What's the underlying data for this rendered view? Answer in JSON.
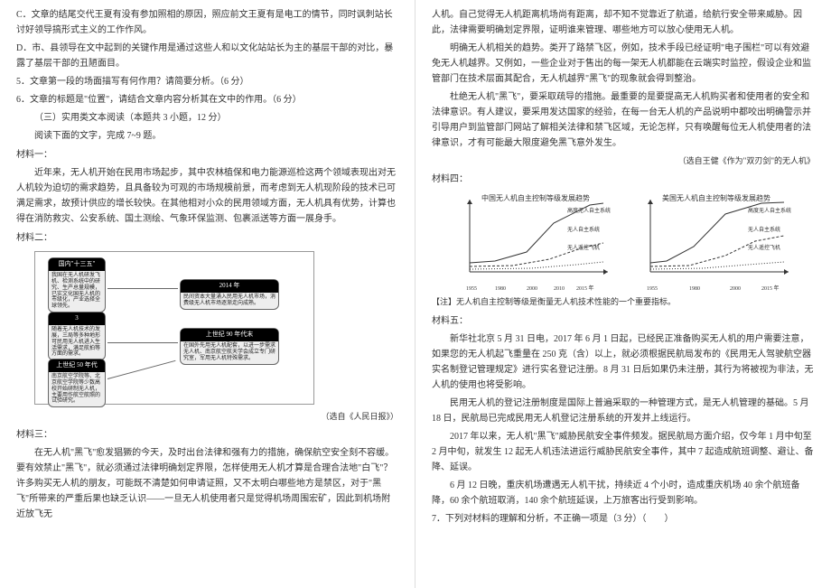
{
  "left": {
    "p_c": "C．文章的结尾交代王夏有没有参加照相的原因，照应前文王夏有是电工的情节，同时讽刺站长讨好领导搞形式主义的工作作风。",
    "p_d": "D．市、县领导在文中起到的关键作用是通过这些人和以文化站站长为主的基层干部的对比，暴露了基层干部的丑陋面目。",
    "q5": "5．文章第一段的场面描写有何作用？请简要分析。（6 分）",
    "q6": "6．文章的标题是\"位置\"，请结合文章内容分析其在文中的作用。（6 分）",
    "sect": "（三）实用类文本阅读（本题共 3 小题，12 分）",
    "inst": "阅读下面的文字，完成 7~9 题。",
    "m1h": "材料一：",
    "m1a": "近年来，无人机开始在民用市场起步，其中农林植保和电力能源巡检这两个领域表现出对无人机较为迫切的需求趋势，且具备较为可观的市场规模前景，而考虑到无人机现阶段的技术已可满足需求，故预计供应的增长较快。在其他相对小众的民用领域方面，无人机具有优势，计算也得在消防救灾、公安系统、国土测绘、气象环保监测、包裹派送等方面一展身手。",
    "m2h": "材料二：",
    "src1": "（选自《人民日报》）",
    "m3h": "材料三：",
    "m3a": "在无人机\"黑飞\"愈发猖獗的今天，及时出台法律和强有力的措施，确保航空安全刻不容缓。要有效禁止\"黑飞\"，就必须通过法律明确划定界限，怎样使用无人机才算是合理合法地\"白飞\"？许多购买无人机的朋友，可能既不清楚如何申请证照，又不太明白哪些地方是禁区，对于\"黑飞\"所带来的严重后果也缺乏认识——一旦无人机使用者只是觉得机场周围宏矿，因此到机场附近放飞无",
    "diagram": {
      "headers": [
        "国内\"十三五\"",
        "3",
        "上世纪 90 年代末",
        "2014 年",
        "上世纪 50 年代"
      ],
      "body1": "我国在无人机研发飞机、检测系统中的研究、生产总量规模，已实文化国无人机的市级化，产业选择全球领先。",
      "body2": "随着无人机技术的发展，三局等多种地形可民用无人机进入生活需求，满足航拍等方面的需求。",
      "body3": "在国外先用无人机配套，以进一步需求无人机、南京航空航天学会成立专门研究室，军用无人机特殊需求。",
      "body4": "民间资本大量涌入民用无人机市场，消费级无人机市场逐渐走向成熟。",
      "body5": "南京航空学院等、北京航空学院等少数高校开始研制无人机，主要用作航空航照的试验研究。"
    }
  },
  "right": {
    "p1": "人机。自己觉得无人机距离机场尚有距离，却不知不觉靠近了航道，给航行安全带来威胁。因此，法律需要明确划定界限，证明谁来管理、哪些地方可以放心使用无人机。",
    "p2": "明确无人机相关的趋势。类开了路禁飞区，例如，技术手段已经证明\"电子围栏\"可以有效避免无人机越界。又例如，一些企业对于售出的每一架无人机都能在云端实时监控，假设企业和监管部门在技术层面其配合，无人机越界\"黑飞\"的现象就会得到整治。",
    "p3": "杜绝无人机\"黑飞\"，要采取疏导的措施。最重要的是要提高无人机购买者和使用者的安全和法律意识。有人建议，要采用发达国家的经验，在每一台无人机的产品说明中都咬出明确警示并引导用户到监管部门网站了解相关法律和禁飞区域，无论怎样，只有唤醒每位无人机使用者的法律意识，才有可能最大限度避免黑飞意外发生。",
    "src2": "（选自王健《作为\"双刃剑\"的无人机》",
    "m4h": "材料四：",
    "note": "【注】无人机自主控制等级是衡量无人机技术性能的一个重要指标。",
    "m5h": "材料五：",
    "m5a": "新华社北京 5 月 31 日电，2017 年 6 月 1 日起，已经民正准备购买无人机的用户需要注意，如果您的无人机起飞重量在 250 克（含）以上，就必须根据民航局发布的《民用无人驾驶航空器实名制登记管理规定》进行实名登记注册。8 月 31 日后如果仍未注册，其行为将被视为非法，无人机的使用也将受影响。",
    "m5b": "民用无人机的登记注册制度是国际上普遍采取的一种管理方式，是无人机管理的基础。5 月 18 日，民航局已完成民用无人机登记注册系统的开发并上线运行。",
    "m5c": "2017 年以来，无人机\"黑飞\"威胁民航安全事件频发。据民航局方面介绍，仅今年 1 月中旬至 2 月中旬，就发生 12 起无人机违法进运行威胁民航安全事件，其中 7 起造成航班调整、避让、备降、延误。",
    "m5d": "6 月 12 日晚，重庆机场遭遇无人机干扰，持续近 4 个小时，造成重庆机场 40 余个航班备降，60 余个航班取消，140 余个航班延误，上万旅客出行受到影响。",
    "q7": "7．下列对材料的理解和分析，不正确一项是（3 分）（　　）",
    "chart1": {
      "title": "中国无人机自主控制等级发展趋势",
      "legend": [
        "高度无人自主系统",
        "无人自主系统",
        "无人遥控飞机"
      ],
      "xlabels": [
        "1955",
        "1980",
        "2000",
        "2010",
        "2015 年"
      ],
      "curve_hi": [
        [
          12,
          78
        ],
        [
          40,
          76
        ],
        [
          75,
          66
        ],
        [
          105,
          34
        ],
        [
          145,
          14
        ],
        [
          160,
          12
        ]
      ],
      "curve_mid": [
        [
          12,
          82
        ],
        [
          60,
          81
        ],
        [
          100,
          74
        ],
        [
          135,
          62
        ],
        [
          160,
          56
        ]
      ],
      "curve_lo": [
        [
          12,
          85
        ],
        [
          80,
          84
        ],
        [
          130,
          80
        ],
        [
          160,
          77
        ]
      ],
      "stroke": "#333"
    },
    "chart2": {
      "title": "美国无人机自主控制等级发展趋势",
      "legend": [
        "高度无人自主系统",
        "无人自主系统",
        "无人遥控飞机"
      ],
      "xlabels": [
        "1955",
        "1980",
        "2000",
        "2015 年"
      ],
      "curve_hi": [
        [
          12,
          78
        ],
        [
          30,
          76
        ],
        [
          60,
          60
        ],
        [
          95,
          24
        ],
        [
          135,
          12
        ],
        [
          160,
          11
        ]
      ],
      "curve_mid": [
        [
          12,
          82
        ],
        [
          55,
          81
        ],
        [
          95,
          70
        ],
        [
          128,
          54
        ],
        [
          160,
          48
        ]
      ],
      "curve_lo": [
        [
          12,
          85
        ],
        [
          70,
          84
        ],
        [
          120,
          80
        ],
        [
          160,
          77
        ]
      ],
      "stroke": "#333"
    }
  }
}
